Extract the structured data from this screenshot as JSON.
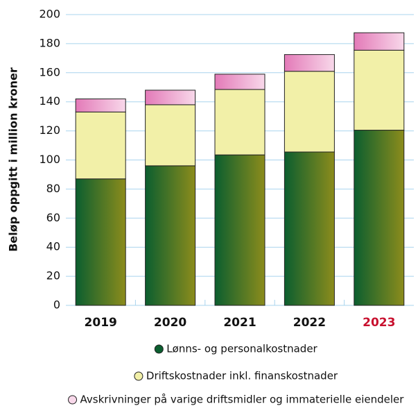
{
  "chart_data": {
    "type": "stacked_bar",
    "y_label": "Beløp oppgitt i million kroner",
    "categories": [
      "2019",
      "2020",
      "2021",
      "2022",
      "2023"
    ],
    "category_colors": [
      "#111111",
      "#111111",
      "#111111",
      "#111111",
      "#c8102e"
    ],
    "series": [
      {
        "name": "Lønns- og personalkostnader",
        "color": "#0b5e2f",
        "gradient_to": "#8c8c1c",
        "values": [
          87,
          96,
          103.5,
          105.5,
          120.5
        ]
      },
      {
        "name": "Driftskostnader inkl. finanskostnader",
        "color": "#f2f0a8",
        "gradient_to": "#f2f0a8",
        "values": [
          46,
          42,
          45,
          55.5,
          55
        ]
      },
      {
        "name": "Avskrivninger på varige driftsmidler og immaterielle eiendeler",
        "color": "#e37ab8",
        "gradient_to": "#f8d8ea",
        "values": [
          9,
          10,
          10.5,
          11.5,
          12
        ]
      }
    ],
    "ylim": [
      0,
      200
    ],
    "yticks": [
      0,
      20,
      40,
      60,
      80,
      100,
      120,
      140,
      160,
      180,
      200
    ],
    "grid": true
  }
}
